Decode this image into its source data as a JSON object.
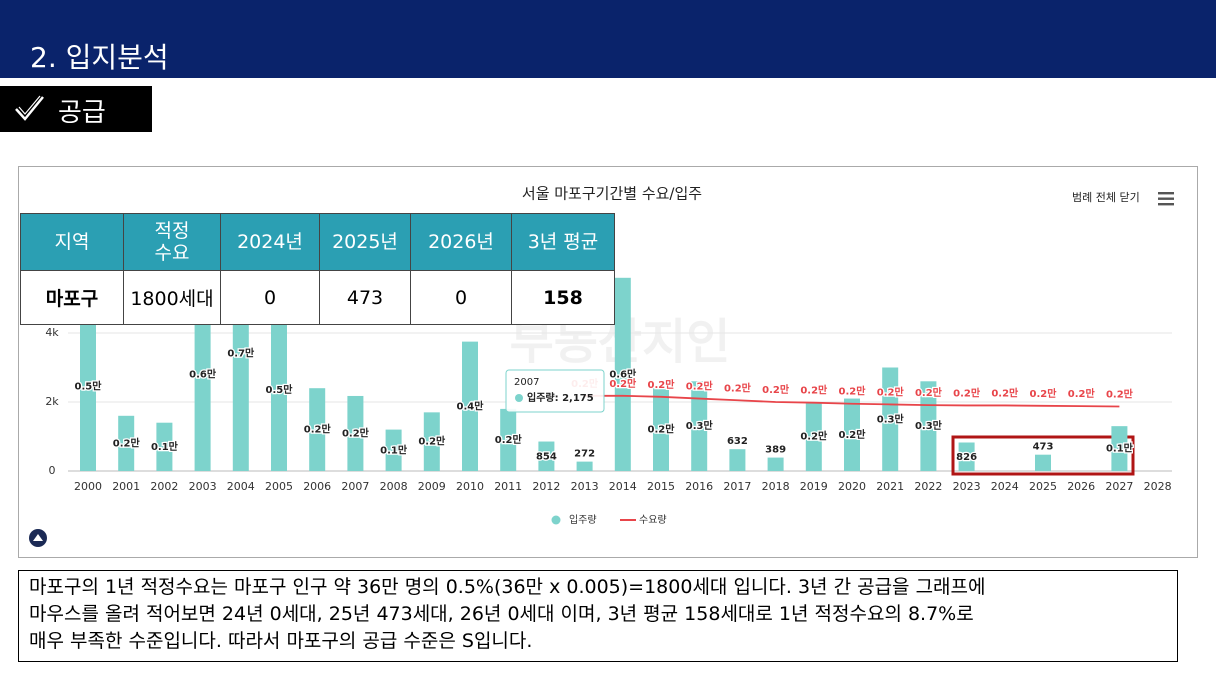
{
  "header": {
    "title": "2. 입지분석"
  },
  "section": {
    "label": "공급"
  },
  "table": {
    "header": [
      "지역",
      "적정\n수요",
      "2024년",
      "2025년",
      "2026년",
      "3년 평균"
    ],
    "rows": [
      [
        "마포구",
        "1800세대",
        "0",
        "473",
        "0",
        "158"
      ]
    ]
  },
  "paragraph": {
    "lines": [
      "마포구의 1년 적정수요는 마포구 인구 약 36만 명의 0.5%(36만 x 0.005)=1800세대 입니다. 3년 간 공급을 그래프에",
      "마우스를 올려 적어보면 24년 0세대, 25년 473세대, 26년 0세대 이며, 3년 평균 158세대로 1년 적정수요의 8.7%로",
      "매우 부족한 수준입니다. 따라서 마포구의 공급 수준은 S입니다."
    ]
  },
  "chart_data": {
    "type": "bar",
    "title": "서울 마포구기간별 수요/입주",
    "legend_toggle": "범례 전체 닫기",
    "watermark": "부동산지인",
    "categories": [
      "2000",
      "2001",
      "2002",
      "2003",
      "2004",
      "2005",
      "2006",
      "2007",
      "2008",
      "2009",
      "2010",
      "2011",
      "2012",
      "2013",
      "2014",
      "2015",
      "2016",
      "2017",
      "2018",
      "2019",
      "2020",
      "2021",
      "2022",
      "2023",
      "2024",
      "2025",
      "2026",
      "2027",
      "2028"
    ],
    "series": [
      {
        "name": "입주량",
        "type": "bar",
        "color": "#7dd3cc",
        "values": [
          4900,
          1600,
          1400,
          5600,
          6800,
          4700,
          2400,
          2175,
          1200,
          1700,
          3750,
          1800,
          854,
          272,
          5600,
          2400,
          2600,
          632,
          389,
          2000,
          2100,
          3000,
          2600,
          826,
          0,
          473,
          0,
          1300,
          null
        ],
        "value_labels": [
          "0.5만",
          "0.2만",
          "0.1만",
          "0.6만",
          "0.7만",
          "0.5만",
          "0.2만",
          "0.2만",
          "0.1만",
          "0.2만",
          "0.4만",
          "0.2만",
          "854",
          "272",
          "0.6만",
          "0.2만",
          "0.3만",
          "632",
          "389",
          "0.2만",
          "0.2만",
          "0.3만",
          "0.3만",
          "826",
          null,
          "473",
          null,
          "0.1만",
          null
        ]
      },
      {
        "name": "수요량",
        "type": "line",
        "color": "#e8454a",
        "values": [
          null,
          null,
          null,
          null,
          null,
          null,
          null,
          null,
          null,
          null,
          null,
          null,
          null,
          2180,
          2180,
          2150,
          2100,
          2050,
          2000,
          1980,
          1950,
          1930,
          1910,
          1900,
          1900,
          1890,
          1880,
          1870,
          null
        ],
        "value_labels": [
          null,
          null,
          null,
          null,
          null,
          null,
          null,
          null,
          null,
          null,
          null,
          null,
          null,
          "0.2만",
          "0.2만",
          "0.2만",
          "0.2만",
          "0.2만",
          "0.2만",
          "0.2만",
          "0.2만",
          "0.2만",
          "0.2만",
          "0.2만",
          "0.2만",
          "0.2만",
          "0.2만",
          "0.2만",
          null
        ]
      }
    ],
    "ylim": [
      0,
      7000
    ],
    "yticks": [
      0,
      {
        "value": 2000,
        "label": "2k"
      },
      {
        "value": 4000,
        "label": "4k"
      }
    ],
    "grid": true,
    "tooltip": {
      "title": "2007",
      "text": "입주량: 2,175"
    }
  }
}
